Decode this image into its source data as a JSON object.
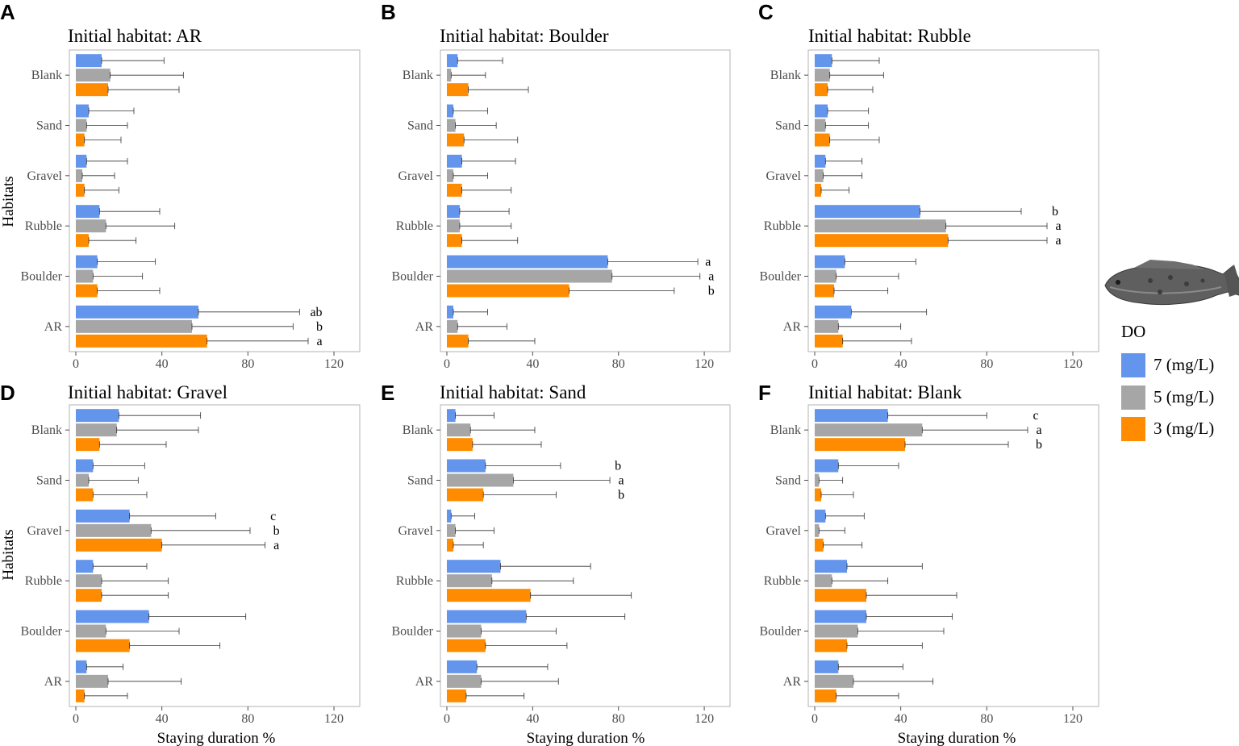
{
  "figure": {
    "y_axis_title": "Habitats",
    "x_axis_title": "Staying duration %"
  },
  "legend": {
    "title": "DO",
    "items": [
      {
        "label": "7 (mg/L)",
        "color": "#6495ED"
      },
      {
        "label": "5 (mg/L)",
        "color": "#A6A6A6"
      },
      {
        "label": "3 (mg/L)",
        "color": "#FF8C00"
      }
    ],
    "image_icon": "fish-photo"
  },
  "chart_data": [
    {
      "type": "bar",
      "orientation": "horizontal",
      "panel": "A",
      "title": "Initial habitat: AR",
      "categories": [
        "AR",
        "Boulder",
        "Rubble",
        "Gravel",
        "Sand",
        "Blank"
      ],
      "xlim": [
        -3,
        132
      ],
      "xticks": [
        0,
        40,
        80,
        120
      ],
      "series": [
        {
          "name": "7 (mg/L)",
          "values": [
            57,
            10,
            11,
            5,
            6,
            12
          ],
          "errors": [
            47,
            27,
            28,
            19,
            21,
            29
          ]
        },
        {
          "name": "5 (mg/L)",
          "values": [
            54,
            8,
            14,
            3,
            5,
            16
          ],
          "errors": [
            47,
            23,
            32,
            15,
            19,
            34
          ]
        },
        {
          "name": "3 (mg/L)",
          "values": [
            61,
            10,
            6,
            4,
            4,
            15
          ],
          "errors": [
            47,
            29,
            22,
            16,
            17,
            33
          ]
        }
      ],
      "sig_labels": {
        "AR": [
          "ab",
          "b",
          "a"
        ]
      }
    },
    {
      "type": "bar",
      "orientation": "horizontal",
      "panel": "B",
      "title": "Initial habitat: Boulder",
      "categories": [
        "AR",
        "Boulder",
        "Rubble",
        "Gravel",
        "Sand",
        "Blank"
      ],
      "xlim": [
        -3,
        132
      ],
      "xticks": [
        0,
        40,
        80,
        120
      ],
      "series": [
        {
          "name": "7 (mg/L)",
          "values": [
            3,
            75,
            6,
            7,
            3,
            5
          ],
          "errors": [
            16,
            42,
            23,
            25,
            16,
            21
          ]
        },
        {
          "name": "5 (mg/L)",
          "values": [
            5,
            77,
            6,
            3,
            4,
            2
          ],
          "errors": [
            23,
            41,
            24,
            16,
            19,
            16
          ]
        },
        {
          "name": "3 (mg/L)",
          "values": [
            10,
            57,
            7,
            7,
            8,
            10
          ],
          "errors": [
            31,
            49,
            26,
            23,
            25,
            28
          ]
        }
      ],
      "sig_labels": {
        "Boulder": [
          "a",
          "a",
          "b"
        ]
      }
    },
    {
      "type": "bar",
      "orientation": "horizontal",
      "panel": "C",
      "title": "Initial habitat: Rubble",
      "categories": [
        "AR",
        "Boulder",
        "Rubble",
        "Gravel",
        "Sand",
        "Blank"
      ],
      "xlim": [
        -3,
        132
      ],
      "xticks": [
        0,
        40,
        80,
        120
      ],
      "series": [
        {
          "name": "7 (mg/L)",
          "values": [
            17,
            14,
            49,
            5,
            6,
            8
          ],
          "errors": [
            35,
            33,
            47,
            17,
            19,
            22
          ]
        },
        {
          "name": "5 (mg/L)",
          "values": [
            11,
            10,
            61,
            4,
            5,
            7
          ],
          "errors": [
            29,
            29,
            47,
            18,
            20,
            25
          ]
        },
        {
          "name": "3 (mg/L)",
          "values": [
            13,
            9,
            62,
            3,
            7,
            6
          ],
          "errors": [
            32,
            25,
            46,
            13,
            23,
            21
          ]
        }
      ],
      "sig_labels": {
        "Rubble": [
          "b",
          "a",
          "a"
        ]
      }
    },
    {
      "type": "bar",
      "orientation": "horizontal",
      "panel": "D",
      "title": "Initial habitat: Gravel",
      "categories": [
        "AR",
        "Boulder",
        "Rubble",
        "Gravel",
        "Sand",
        "Blank"
      ],
      "xlim": [
        -3,
        132
      ],
      "xticks": [
        0,
        40,
        80,
        120
      ],
      "series": [
        {
          "name": "7 (mg/L)",
          "values": [
            5,
            34,
            8,
            25,
            8,
            20
          ],
          "errors": [
            17,
            45,
            25,
            40,
            24,
            38
          ]
        },
        {
          "name": "5 (mg/L)",
          "values": [
            15,
            14,
            12,
            35,
            6,
            19
          ],
          "errors": [
            34,
            34,
            31,
            46,
            23,
            38
          ]
        },
        {
          "name": "3 (mg/L)",
          "values": [
            4,
            25,
            12,
            40,
            8,
            11
          ],
          "errors": [
            20,
            42,
            31,
            48,
            25,
            31
          ]
        }
      ],
      "sig_labels": {
        "Gravel": [
          "c",
          "b",
          "a"
        ]
      }
    },
    {
      "type": "bar",
      "orientation": "horizontal",
      "panel": "E",
      "title": "Initial habitat: Sand",
      "categories": [
        "AR",
        "Boulder",
        "Rubble",
        "Gravel",
        "Sand",
        "Blank"
      ],
      "xlim": [
        -3,
        132
      ],
      "xticks": [
        0,
        40,
        80,
        120
      ],
      "series": [
        {
          "name": "7 (mg/L)",
          "values": [
            14,
            37,
            25,
            2,
            18,
            4
          ],
          "errors": [
            33,
            46,
            42,
            11,
            35,
            18
          ]
        },
        {
          "name": "5 (mg/L)",
          "values": [
            16,
            16,
            21,
            4,
            31,
            11
          ],
          "errors": [
            36,
            35,
            38,
            18,
            45,
            30
          ]
        },
        {
          "name": "3 (mg/L)",
          "values": [
            9,
            18,
            39,
            3,
            17,
            12
          ],
          "errors": [
            27,
            38,
            47,
            14,
            34,
            32
          ]
        }
      ],
      "sig_labels": {
        "Sand": [
          "b",
          "a",
          "b"
        ]
      }
    },
    {
      "type": "bar",
      "orientation": "horizontal",
      "panel": "F",
      "title": "Initial habitat: Blank",
      "categories": [
        "AR",
        "Boulder",
        "Rubble",
        "Gravel",
        "Sand",
        "Blank"
      ],
      "xlim": [
        -3,
        132
      ],
      "xticks": [
        0,
        40,
        80,
        120
      ],
      "series": [
        {
          "name": "7 (mg/L)",
          "values": [
            11,
            24,
            15,
            5,
            11,
            34
          ],
          "errors": [
            30,
            40,
            35,
            18,
            28,
            46
          ]
        },
        {
          "name": "5 (mg/L)",
          "values": [
            18,
            20,
            8,
            2,
            2,
            50
          ],
          "errors": [
            37,
            40,
            26,
            12,
            11,
            49
          ]
        },
        {
          "name": "3 (mg/L)",
          "values": [
            10,
            15,
            24,
            4,
            3,
            42
          ],
          "errors": [
            29,
            35,
            42,
            18,
            15,
            48
          ]
        }
      ],
      "sig_labels": {
        "Blank": [
          "c",
          "a",
          "b"
        ]
      }
    }
  ]
}
